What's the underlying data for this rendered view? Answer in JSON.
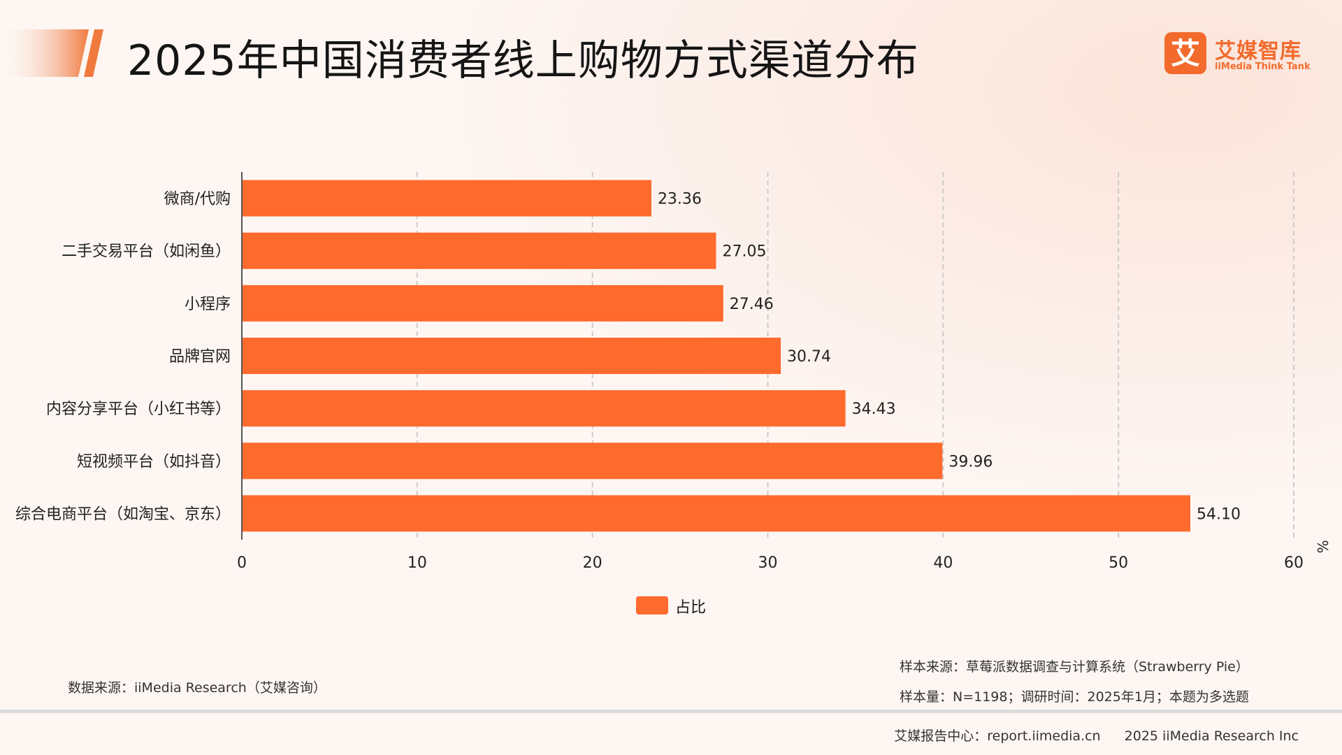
{
  "header": {
    "title": "2025年中国消费者线上购物方式渠道分布",
    "logo_mark": "艾",
    "logo_name": "艾媒智库",
    "logo_sub": "iiMedia Think Tank"
  },
  "colors": {
    "accent": "#ff6a2d",
    "grid": "#cccccc",
    "axis": "#555555"
  },
  "chart_data": {
    "type": "bar",
    "orientation": "horizontal",
    "title": "",
    "categories": [
      "微商/代购",
      "二手交易平台（如闲鱼）",
      "小程序",
      "品牌官网",
      "内容分享平台（小红书等）",
      "短视频平台（如抖音）",
      "综合电商平台（如淘宝、京东）"
    ],
    "series": [
      {
        "name": "占比",
        "values": [
          23.36,
          27.05,
          27.46,
          30.74,
          34.43,
          39.96,
          54.1
        ]
      }
    ],
    "value_labels": [
      "23.36",
      "27.05",
      "27.46",
      "30.74",
      "34.43",
      "39.96",
      "54.10"
    ],
    "xlim": [
      0,
      60
    ],
    "xticks": [
      "0",
      "10",
      "20",
      "30",
      "40",
      "50",
      "60"
    ],
    "unit": "%",
    "grid": true,
    "legend_position": "bottom"
  },
  "footer": {
    "data_source": "数据来源：iiMedia Research（艾媒咨询）",
    "sample_source": "样本来源：草莓派数据调查与计算系统（Strawberry Pie）",
    "sample_size": "样本量：N=1198；调研时间：2025年1月；本题为多选题",
    "report_center": "艾媒报告中心：report.iimedia.cn",
    "copyright": "2025 iiMedia Research Inc"
  }
}
